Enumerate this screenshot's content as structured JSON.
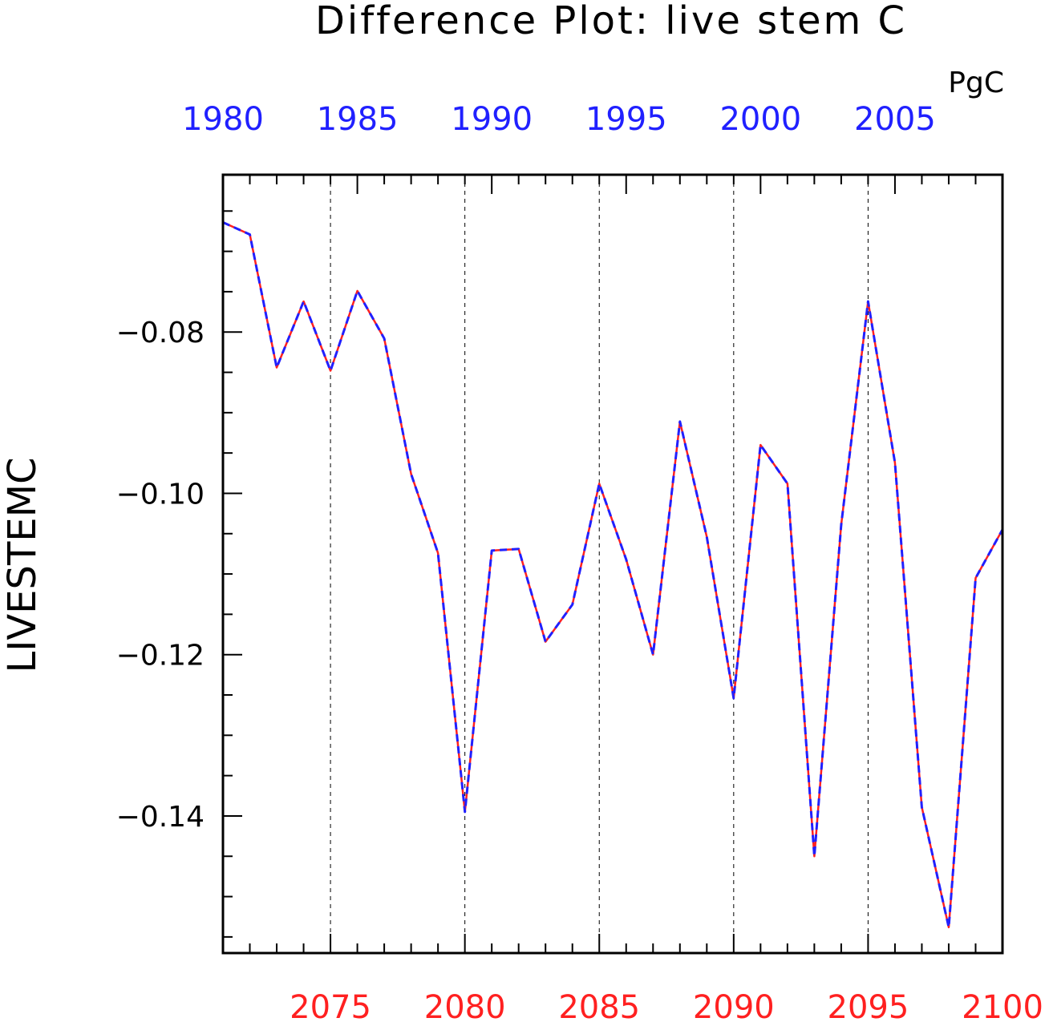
{
  "chart_data": {
    "type": "line",
    "title": "Difference Plot: live stem C",
    "units": "PgC",
    "ylabel": "LIVESTEMC",
    "xlabel": "",
    "ylim": [
      -0.157,
      -0.0605
    ],
    "grid": "vertical dashed at major bottom ticks",
    "x_bottom": {
      "range": [
        2071,
        2100
      ],
      "major_ticks": [
        2075,
        2080,
        2085,
        2090,
        2095,
        2100
      ],
      "labels": [
        "2075",
        "2080",
        "2085",
        "2090",
        "2095",
        "2100"
      ],
      "color": "#ff2020"
    },
    "x_top": {
      "range": [
        1980,
        2009
      ],
      "major_ticks": [
        1980,
        1985,
        1990,
        1995,
        2000,
        2005
      ],
      "labels": [
        "1980",
        "1985",
        "1990",
        "1995",
        "2000",
        "2005"
      ],
      "color": "#2020ff"
    },
    "y_ticks": {
      "major": [
        -0.08,
        -0.1,
        -0.12,
        -0.14
      ],
      "labels": [
        "−0.08",
        "−0.10",
        "−0.12",
        "−0.14"
      ],
      "minor": [
        -0.065,
        -0.07,
        -0.075,
        -0.085,
        -0.09,
        -0.095,
        -0.105,
        -0.11,
        -0.115,
        -0.125,
        -0.13,
        -0.135,
        -0.145,
        -0.15,
        -0.155
      ]
    },
    "x": [
      2071,
      2072,
      2073,
      2074,
      2075,
      2076,
      2077,
      2078,
      2079,
      2080,
      2081,
      2082,
      2083,
      2084,
      2085,
      2086,
      2087,
      2088,
      2089,
      2090,
      2091,
      2092,
      2093,
      2094,
      2095,
      2096,
      2097,
      2098,
      2099,
      2100
    ],
    "series": [
      {
        "values": [
          -0.0664,
          -0.0679,
          -0.0844,
          -0.0762,
          -0.0848,
          -0.0749,
          -0.0808,
          -0.0976,
          -0.1074,
          -0.1395,
          -0.1071,
          -0.1069,
          -0.1184,
          -0.1138,
          -0.0988,
          -0.1082,
          -0.12,
          -0.0911,
          -0.1054,
          -0.1254,
          -0.094,
          -0.0988,
          -0.145,
          -0.1039,
          -0.0762,
          -0.0962,
          -0.1389,
          -0.1538,
          -0.1105,
          -0.1045
        ],
        "color": "#ff2020",
        "style": "solid"
      },
      {
        "values": [
          -0.0664,
          -0.0679,
          -0.0844,
          -0.0762,
          -0.0848,
          -0.0749,
          -0.0808,
          -0.0976,
          -0.1074,
          -0.1395,
          -0.1071,
          -0.1069,
          -0.1184,
          -0.1138,
          -0.0988,
          -0.1082,
          -0.12,
          -0.0911,
          -0.1054,
          -0.1254,
          -0.094,
          -0.0988,
          -0.145,
          -0.1039,
          -0.0762,
          -0.0962,
          -0.1389,
          -0.1538,
          -0.1105,
          -0.1045
        ],
        "color": "#2020ff",
        "style": "dashed"
      }
    ]
  }
}
